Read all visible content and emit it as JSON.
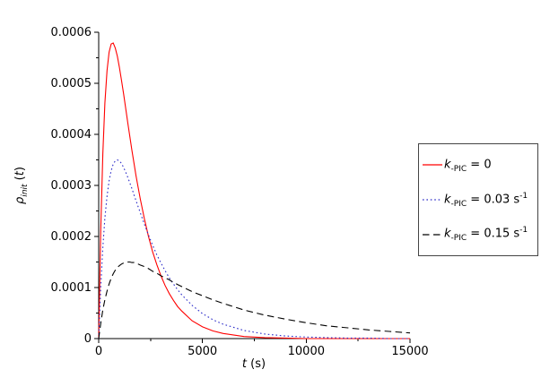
{
  "chart_data": {
    "type": "line",
    "title": "",
    "xlabel": "t (s)",
    "ylabel": "rho_init (t)",
    "xlim": [
      0,
      15000
    ],
    "ylim": [
      0,
      0.0006
    ],
    "grid": false,
    "legend_position": "outside-right",
    "x_ticks": [
      0,
      5000,
      10000,
      15000
    ],
    "x_tick_labels": [
      "0",
      "5000",
      "10000",
      "15000"
    ],
    "x_minor_ticks": [
      2500,
      7500,
      12500
    ],
    "y_ticks": [
      0,
      0.0001,
      0.0002,
      0.0003,
      0.0004,
      0.0005,
      0.0006
    ],
    "y_tick_labels": [
      "0",
      "0.0001",
      "0.0002",
      "0.0003",
      "0.0004",
      "0.0005",
      "0.0006"
    ],
    "y_minor_ticks": [
      5e-05,
      0.00015,
      0.00025,
      0.00035,
      0.00045,
      0.00055
    ],
    "x": [
      0,
      100,
      200,
      300,
      400,
      500,
      600,
      700,
      800,
      900,
      1000,
      1100,
      1200,
      1300,
      1400,
      1500,
      1600,
      1700,
      1800,
      1900,
      2000,
      2200,
      2400,
      2600,
      2800,
      3000,
      3200,
      3400,
      3600,
      3800,
      4000,
      4500,
      5000,
      5500,
      6000,
      7000,
      8000,
      9000,
      10000,
      11000,
      12000,
      13000,
      14000,
      15000
    ],
    "series": [
      {
        "name": "k-PIC = 0",
        "color": "#ff0000",
        "style": "solid",
        "values": [
          0,
          0.000213,
          0.000361,
          0.000461,
          0.000525,
          0.000561,
          0.000577,
          0.000579,
          0.000569,
          0.000553,
          0.000531,
          0.000506,
          0.000479,
          0.000451,
          0.000423,
          0.000396,
          0.000369,
          0.000344,
          0.000319,
          0.000296,
          0.000274,
          0.000235,
          0.0002,
          0.00017,
          0.000145,
          0.000123,
          0.000104,
          8.8e-05,
          7.5e-05,
          6.3e-05,
          5.4e-05,
          3.5e-05,
          2.3e-05,
          1.5e-05,
          1e-05,
          4e-06,
          2e-06,
          1e-06,
          0,
          0,
          0,
          0,
          0,
          0
        ]
      },
      {
        "name": "k-PIC = 0.03 s^-1",
        "color": "#2a2ac8",
        "style": "dotted",
        "values": [
          0,
          0.000101,
          0.000178,
          0.000236,
          0.000279,
          0.000309,
          0.000329,
          0.000342,
          0.000348,
          0.00035,
          0.000348,
          0.000343,
          0.000335,
          0.000326,
          0.000316,
          0.000305,
          0.000294,
          0.000282,
          0.00027,
          0.000258,
          0.000247,
          0.000224,
          0.000203,
          0.000183,
          0.000164,
          0.000148,
          0.000133,
          0.000119,
          0.000107,
          9.6e-05,
          8.6e-05,
          6.5e-05,
          4.9e-05,
          3.7e-05,
          2.8e-05,
          1.6e-05,
          9e-06,
          5e-06,
          3e-06,
          2e-06,
          1e-06,
          1e-06,
          0,
          0
        ]
      },
      {
        "name": "k-PIC = 0.15 s^-1",
        "color": "#000000",
        "style": "dashed",
        "values": [
          0,
          3e-05,
          5.6e-05,
          7.6e-05,
          9.3e-05,
          0.000107,
          0.000118,
          0.000127,
          0.000134,
          0.000139,
          0.000143,
          0.000146,
          0.000148,
          0.000149,
          0.00015,
          0.00015,
          0.000149,
          0.000149,
          0.000147,
          0.000146,
          0.000144,
          0.000141,
          0.000137,
          0.000132,
          0.000128,
          0.000123,
          0.000119,
          0.000115,
          0.00011,
          0.000106,
          0.000102,
          9.2e-05,
          8.4e-05,
          7.6e-05,
          6.9e-05,
          5.6e-05,
          4.6e-05,
          3.8e-05,
          3.1e-05,
          2.5e-05,
          2.1e-05,
          1.7e-05,
          1.4e-05,
          1.1e-05
        ]
      }
    ]
  },
  "axis_labels": {
    "x_var": "t",
    "x_unit": " (s)",
    "y_sym": "ρ",
    "y_sub": "init",
    "y_open": " (",
    "y_var": "t",
    "y_close": ")"
  },
  "legend": {
    "entries": [
      {
        "var": "k",
        "sub": "-PIC",
        "rest": " = 0",
        "sup": ""
      },
      {
        "var": "k",
        "sub": "-PIC",
        "rest": " = 0.03 s",
        "sup": "-1"
      },
      {
        "var": "k",
        "sub": "-PIC",
        "rest": " = 0.15 s",
        "sup": "-1"
      }
    ]
  }
}
